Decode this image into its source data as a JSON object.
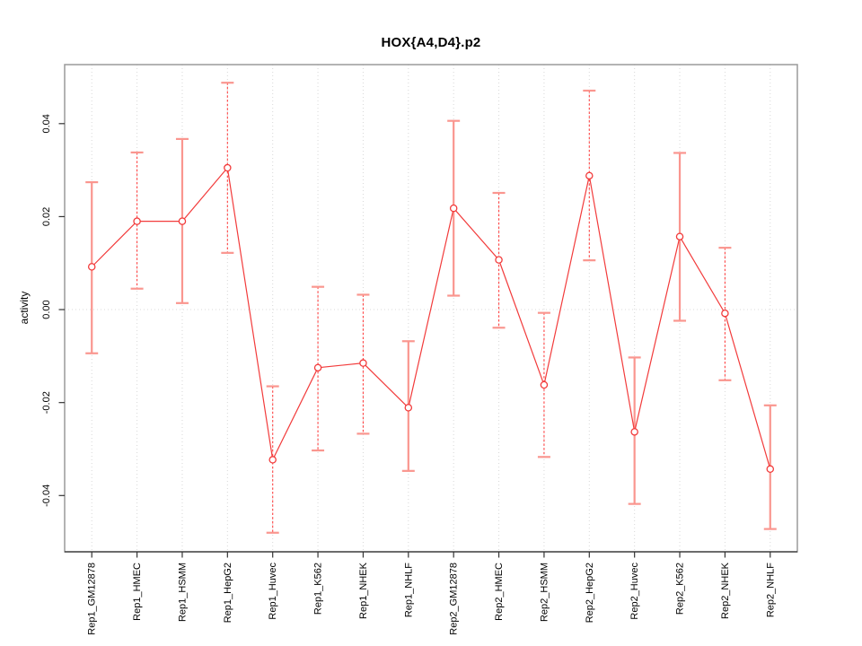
{
  "chart_data": {
    "type": "line",
    "title": "HOX{A4,D4}.p2",
    "xlabel": "",
    "ylabel": "activity",
    "categories": [
      "Rep1_GM12878",
      "Rep1_HMEC",
      "Rep1_HSMM",
      "Rep1_HepG2",
      "Rep1_Huvec",
      "Rep1_K562",
      "Rep1_NHEK",
      "Rep1_NHLF",
      "Rep2_GM12878",
      "Rep2_HMEC",
      "Rep2_HSMM",
      "Rep2_HepG2",
      "Rep2_Huvec",
      "Rep2_K562",
      "Rep2_NHEK",
      "Rep2_NHLF"
    ],
    "series": [
      {
        "name": "activity",
        "values": [
          0.0092,
          0.019,
          0.019,
          0.0305,
          -0.0323,
          -0.0125,
          -0.0115,
          -0.0211,
          0.0218,
          0.0107,
          -0.0162,
          0.0288,
          -0.0263,
          0.0157,
          -0.0008,
          -0.0343
        ],
        "ci_low": [
          -0.0094,
          0.0045,
          0.0014,
          0.0122,
          -0.048,
          -0.0303,
          -0.0267,
          -0.0347,
          0.003,
          -0.0039,
          -0.0317,
          0.0106,
          -0.0418,
          -0.0024,
          -0.0152,
          -0.0472
        ],
        "ci_high": [
          0.0274,
          0.0338,
          0.0367,
          0.0488,
          -0.0165,
          0.0049,
          0.0032,
          -0.0068,
          0.0406,
          0.0251,
          -0.0007,
          0.0471,
          -0.0103,
          0.0337,
          0.0133,
          -0.0206
        ],
        "bar_styles": [
          "solid",
          "dashed",
          "solid",
          "dashed",
          "dashed",
          "dashed",
          "dashed",
          "solid",
          "solid",
          "dashed",
          "dashed",
          "dashed",
          "solid",
          "solid",
          "dashed",
          "solid"
        ]
      }
    ],
    "yticks": [
      -0.04,
      -0.02,
      0,
      0.02,
      0.04
    ],
    "ytick_labels": [
      "-0.04",
      "-0.02",
      "0.00",
      "0.02",
      "0.04"
    ],
    "ylim": [
      -0.0521,
      0.0527
    ],
    "marker": "open-circle",
    "grid": "vertical-dotted-per-category-plus-dotted-zero-line",
    "legend": "none",
    "colors": {
      "line": "#f23b3b",
      "marker_stroke": "#f23b3b",
      "marker_fill": "#ffffff",
      "error_cap": "#fa968f",
      "solid_bar": "#fa968f",
      "dashed_bar": "#ff4444",
      "grid": "#d8d8d8",
      "box": "#9a9a9a",
      "axis": "#333333",
      "text": "#000000"
    }
  }
}
